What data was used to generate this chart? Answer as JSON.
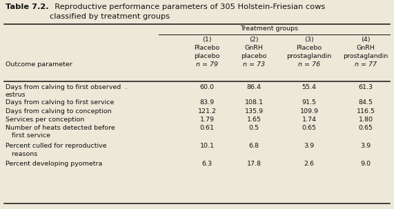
{
  "title_bold": "Table 7.2.",
  "title_rest": "Reproductive performance parameters of 305 Holstein-Friesian cows",
  "title_line2": "classified by treatment groups",
  "treatment_groups_label": "Treatment groups",
  "col_headers_line1": [
    "(1)",
    "(2)",
    "(3)",
    "(4)"
  ],
  "col_headers_line2": [
    "Placebo",
    "GnRH",
    "Placebo",
    "GnRH"
  ],
  "col_headers_line3": [
    "placebo",
    "placebo",
    "prostaglandin",
    "prostaglandin"
  ],
  "col_headers_line4": [
    "n = 79",
    "n = 73",
    "n = 76",
    "n = 77"
  ],
  "row_labels_line1": [
    "Days from calving to first observed  .",
    "Days from calving to first service",
    "Days from calving to conception",
    "Services per conception",
    "Number of heats detected before",
    "Percent culled for reproductive",
    "Percent developing pyometra"
  ],
  "row_labels_line2": [
    "estrus",
    "",
    "",
    "",
    "   first service",
    "   reasons",
    ""
  ],
  "data_str": [
    [
      "60.0",
      "86.4",
      "55.4",
      "61.3"
    ],
    [
      "83.9",
      "108.1",
      "91.5",
      "84.5"
    ],
    [
      "121.2",
      "135.9",
      "109.9",
      "116.5"
    ],
    [
      "1.79",
      "1.65",
      "1.74",
      "1.80"
    ],
    [
      "0.61",
      "0.5",
      "0.65",
      "0.65"
    ],
    [
      "10.1",
      "6.8",
      "3.9",
      "3.9"
    ],
    [
      "6.3",
      "17.8",
      "2.6",
      "9.0"
    ]
  ],
  "outcome_label": "Outcome parameter",
  "bg_color": "#ede8d8",
  "text_color": "#111111",
  "font_size": 6.8,
  "title_font_size": 8.2
}
